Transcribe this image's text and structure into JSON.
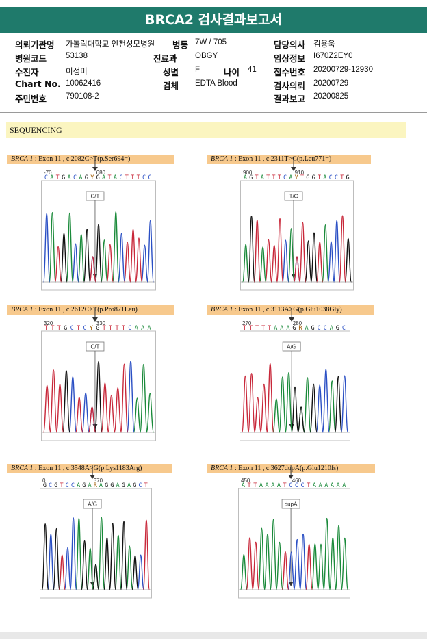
{
  "header": {
    "title": "BRCA2 검사결과보고서"
  },
  "info": {
    "institution": {
      "label": "의뢰기관명",
      "value": "가톨릭대학교 인천성모병원"
    },
    "ward": {
      "label": "병동",
      "value": "7W / 705"
    },
    "doctor": {
      "label": "담당의사",
      "value": "김용욱"
    },
    "hospital_code": {
      "label": "병원코드",
      "value": "53138"
    },
    "department": {
      "label": "진료과",
      "value": "OBGY"
    },
    "clinical_info": {
      "label": "임상정보",
      "value": "I670Z2EY0"
    },
    "examinee": {
      "label": "수진자",
      "value": "이정미"
    },
    "sex": {
      "label": "성별",
      "value": "F"
    },
    "age": {
      "label": "나이",
      "value": "41"
    },
    "receipt_no": {
      "label": "접수번호",
      "value": "20200729-12930"
    },
    "chart_no": {
      "label": "Chart No.",
      "value": "10062416"
    },
    "specimen": {
      "label": "검체",
      "value": "EDTA Blood"
    },
    "request_date": {
      "label": "검사의뢰",
      "value": "20200729"
    },
    "resident_no": {
      "label": "주민번호",
      "value": "790108-2"
    },
    "report_date": {
      "label": "결과보고",
      "value": "20200825"
    }
  },
  "sequencing": {
    "title": "SEQUENCING"
  },
  "panels": [
    {
      "gene": "BRCA 1",
      "desc": ": Exon 11 , c.2082C>T(p.Ser694=)",
      "pos_left": "-70",
      "pos_right": "680",
      "sequence": "CATGACAGYGATACTTTCC",
      "call": "C/T"
    },
    {
      "gene": "BRCA 1",
      "desc": ": Exon 11 , c.2311T>C(p.Leu771=)",
      "pos_left": "900",
      "pos_right": "910",
      "sequence": "AGTATTTCAYTGGTACCTG",
      "call": "T/C"
    },
    {
      "gene": "BRCA 1",
      "desc": ": Exon 11 , c.2612C>T(p.Pro871Leu)",
      "pos_left": "320",
      "pos_right": "330",
      "sequence": "TTTGCTCYGTTTTCAAA",
      "call": "C/T"
    },
    {
      "gene": "BRCA 1",
      "desc": ": Exon 11 , c.3113A>G(p.Glu1038Gly)",
      "pos_left": "270",
      "pos_right": "280",
      "sequence": "TTTTTAAAGRAGCCAGC",
      "call": "A/G"
    },
    {
      "gene": "BRCA 1",
      "desc": ": Exon 11 , c.3548A>G(p.Lys1183Arg)",
      "pos_left": "0",
      "pos_right": "370",
      "sequence": "GCGTCCAGARAGGAGAGCT",
      "call": "A/G"
    },
    {
      "gene": "BRCA 1",
      "desc": ": Exon 11 , c.3627dupA(p.Glu1210fs)",
      "pos_left": "450",
      "pos_right": "460",
      "sequence": "ATTAAAATCCCTAAAAAA",
      "call": "dupA"
    }
  ],
  "colors": {
    "header_bg": "#1f7a6b",
    "banner_bg": "#fbf5c0",
    "panel_title_bg": "#f7c98d",
    "A": "#1a8a3a",
    "C": "#2a4fc4",
    "G": "#111111",
    "T": "#c8283a"
  }
}
